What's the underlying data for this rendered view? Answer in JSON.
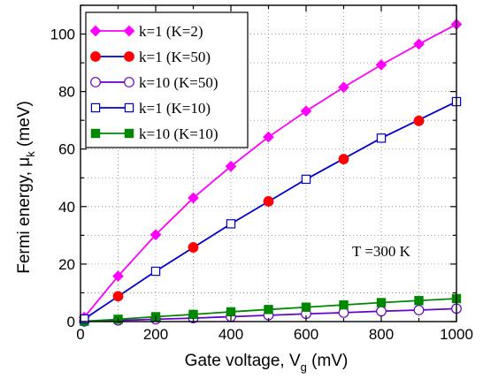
{
  "chart_data": {
    "type": "line",
    "xlabel": "Gate voltage, V",
    "xlabel_sub": "g",
    "xlabel_unit": " (mV)",
    "ylabel": "Fermi energy, μ",
    "ylabel_sub": "k",
    "ylabel_unit": " (meV)",
    "xlim": [
      0,
      1000
    ],
    "ylim": [
      0,
      110
    ],
    "xticks": [
      0,
      200,
      400,
      600,
      800,
      1000
    ],
    "yticks": [
      0,
      20,
      40,
      60,
      80,
      100
    ],
    "grid": true,
    "legend_position": "top-left",
    "annotation": "T =300 K",
    "series": [
      {
        "name": "k=1 (K=2)",
        "color": "#ff00ff",
        "marker": "diamond",
        "filled": true,
        "x": [
          10,
          100,
          200,
          300,
          400,
          500,
          600,
          700,
          800,
          900,
          1000
        ],
        "y": [
          1.5,
          15.8,
          30.2,
          43,
          54,
          64.2,
          73.2,
          81.5,
          89.3,
          96.5,
          103.4
        ]
      },
      {
        "name": "k=1 (K=50)",
        "color": "#ff0000",
        "line_color": "#0000cc",
        "marker": "circle",
        "filled": true,
        "x": [
          100,
          300,
          500,
          700,
          900
        ],
        "y": [
          8.8,
          25.8,
          41.8,
          56.5,
          69.8
        ]
      },
      {
        "name": "k=10 (K=50)",
        "color": "#6600cc",
        "marker": "circle",
        "filled": false,
        "x": [
          10,
          100,
          200,
          300,
          400,
          500,
          600,
          700,
          800,
          900,
          1000
        ],
        "y": [
          0.05,
          0.4,
          0.8,
          1.2,
          1.7,
          2.2,
          2.7,
          3.1,
          3.6,
          4.0,
          4.5
        ]
      },
      {
        "name": "k=1 (K=10)",
        "color": "#0000cc",
        "marker": "square",
        "filled": false,
        "x": [
          10,
          200,
          400,
          600,
          800,
          1000
        ],
        "y": [
          0.9,
          17.5,
          34,
          49.5,
          63.8,
          76.5
        ]
      },
      {
        "name": "k=10 (K=10)",
        "color": "#008800",
        "marker": "square",
        "filled": true,
        "x": [
          10,
          100,
          200,
          300,
          400,
          500,
          600,
          700,
          800,
          900,
          1000
        ],
        "y": [
          0.1,
          0.8,
          1.7,
          2.5,
          3.4,
          4.2,
          5.0,
          5.8,
          6.6,
          7.3,
          8.0
        ]
      }
    ]
  }
}
